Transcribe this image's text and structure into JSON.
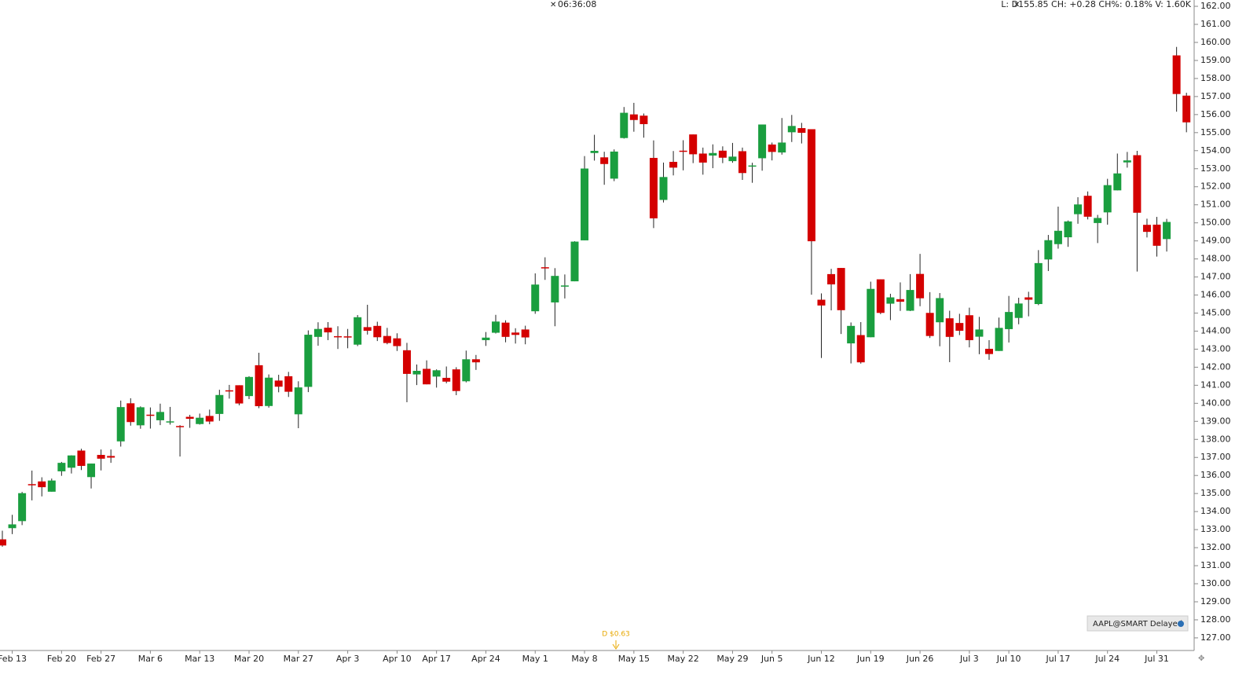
{
  "chart_data": {
    "type": "candlestick",
    "clock": "06:36:08",
    "quote": "L: D155.85 CH: +0.28 CH%: 0.18% V: 1.60K",
    "symbol_label": "AAPL@SMART Delayed",
    "annotations": [
      {
        "text": "D $0.63"
      }
    ],
    "up_color": "#1a9e3f",
    "down_color": "#d40000",
    "categories": [
      null,
      "Feb 13",
      null,
      null,
      null,
      null,
      "Feb 20",
      null,
      null,
      null,
      "Feb 27",
      null,
      null,
      null,
      null,
      "Mar 6",
      null,
      null,
      null,
      null,
      "Mar 13",
      null,
      null,
      null,
      null,
      "Mar 20",
      null,
      null,
      null,
      null,
      "Mar 27",
      null,
      null,
      null,
      null,
      "Apr 3",
      null,
      null,
      null,
      null,
      "Apr 10",
      null,
      null,
      null,
      "Apr 17",
      null,
      null,
      null,
      null,
      "Apr 24",
      null,
      null,
      null,
      null,
      "May 1",
      null,
      null,
      null,
      null,
      "May 8",
      null,
      null,
      null,
      null,
      "May 15",
      null,
      null,
      null,
      null,
      "May 22",
      null,
      null,
      null,
      null,
      "May 29",
      null,
      null,
      null,
      "Jun 5",
      null,
      null,
      null,
      null,
      "Jun 12",
      null,
      null,
      null,
      null,
      "Jun 19",
      null,
      null,
      null,
      null,
      "Jun 26",
      null,
      null,
      null,
      null,
      "Jul 3",
      null,
      null,
      null,
      "Jul 10",
      null,
      null,
      null,
      null,
      "Jul 17",
      null,
      null,
      null,
      null,
      "Jul 24",
      null,
      null,
      null,
      null,
      "Jul 31",
      null,
      null,
      null
    ],
    "open": [
      132.46,
      133.08,
      133.47,
      135.52,
      135.67,
      135.1,
      136.23,
      136.43,
      137.38,
      135.91,
      137.14,
      137.08,
      137.89,
      140.0,
      138.78,
      139.37,
      139.06,
      138.95,
      138.74,
      139.25,
      138.85,
      139.3,
      139.41,
      140.72,
      141.0,
      140.4,
      142.11,
      139.85,
      141.26,
      141.5,
      139.39,
      140.91,
      143.68,
      144.19,
      143.72,
      143.71,
      143.25,
      144.22,
      144.29,
      143.73,
      143.6,
      142.94,
      141.6,
      141.91,
      141.48,
      141.41,
      141.88,
      141.22,
      142.44,
      143.5,
      143.91,
      144.47,
      143.92,
      144.09,
      145.1,
      147.54,
      145.59,
      146.52,
      146.76,
      149.03,
      153.87,
      153.63,
      152.45,
      154.7,
      156.01,
      155.94,
      153.6,
      151.27,
      153.38,
      154.0,
      154.9,
      153.84,
      153.73,
      154.0,
      153.42,
      153.97,
      153.17,
      153.58,
      154.34,
      153.9,
      155.02,
      155.25,
      155.19,
      145.74,
      147.16,
      147.5,
      143.32,
      143.78,
      143.66,
      146.87,
      145.52,
      145.77,
      145.13,
      147.17,
      145.01,
      144.49,
      144.71,
      144.45,
      144.88,
      143.69,
      143.02,
      142.9,
      144.11,
      144.73,
      145.87,
      145.5,
      147.97,
      148.82,
      149.2,
      150.48,
      151.5,
      149.99,
      150.58,
      151.8,
      153.35,
      153.75,
      149.89,
      149.9,
      149.1,
      159.28,
      157.05
    ],
    "high": [
      132.94,
      133.82,
      135.09,
      136.27,
      135.9,
      135.83,
      136.75,
      137.12,
      137.48,
      136.66,
      137.44,
      137.44,
      140.15,
      140.28,
      139.83,
      139.77,
      139.98,
      139.8,
      138.79,
      139.36,
      139.43,
      139.65,
      140.75,
      141.02,
      141.0,
      141.5,
      142.8,
      141.6,
      141.58,
      141.74,
      141.22,
      144.04,
      144.49,
      144.5,
      144.27,
      144.12,
      144.89,
      145.46,
      144.52,
      144.18,
      143.88,
      143.35,
      142.15,
      142.38,
      141.88,
      142.04,
      142.0,
      142.92,
      142.68,
      143.95,
      144.9,
      144.6,
      144.16,
      144.3,
      147.2,
      148.09,
      147.49,
      147.14,
      148.98,
      153.7,
      154.88,
      153.94,
      154.07,
      156.42,
      156.65,
      156.06,
      154.57,
      153.34,
      153.98,
      154.58,
      154.9,
      154.17,
      154.35,
      154.24,
      154.43,
      154.17,
      153.33,
      155.45,
      154.45,
      155.81,
      155.98,
      155.54,
      155.19,
      146.09,
      147.45,
      147.5,
      144.48,
      144.5,
      146.74,
      146.87,
      146.07,
      146.7,
      147.16,
      148.28,
      146.16,
      146.11,
      145.13,
      144.96,
      145.3,
      144.79,
      143.5,
      144.75,
      145.95,
      145.85,
      146.18,
      148.49,
      149.33,
      150.9,
      150.13,
      151.42,
      151.74,
      150.44,
      152.44,
      153.84,
      153.93,
      153.99,
      150.23,
      150.33,
      150.22,
      159.75,
      157.21
    ],
    "low": [
      132.05,
      132.75,
      133.25,
      134.62,
      134.84,
      135.1,
      135.98,
      136.11,
      136.3,
      135.28,
      136.28,
      136.7,
      137.6,
      138.76,
      138.59,
      138.6,
      138.79,
      138.82,
      137.05,
      138.64,
      138.82,
      138.84,
      139.03,
      140.26,
      139.89,
      140.23,
      139.73,
      139.76,
      140.61,
      140.35,
      138.62,
      140.62,
      143.19,
      143.5,
      143.01,
      143.05,
      143.17,
      143.81,
      143.45,
      143.27,
      142.9,
      140.06,
      141.01,
      141.05,
      140.87,
      141.11,
      140.45,
      141.16,
      141.85,
      143.18,
      143.87,
      143.38,
      143.31,
      143.27,
      144.96,
      146.84,
      144.27,
      145.81,
      146.76,
      149.03,
      153.45,
      152.11,
      152.31,
      154.67,
      155.05,
      154.72,
      149.71,
      151.13,
      152.63,
      152.91,
      153.31,
      152.67,
      153.03,
      153.31,
      153.33,
      152.38,
      152.22,
      152.89,
      153.46,
      153.78,
      154.48,
      154.4,
      146.02,
      142.51,
      145.15,
      143.84,
      142.21,
      142.2,
      143.66,
      144.94,
      144.61,
      145.12,
      145.11,
      145.38,
      143.62,
      143.16,
      142.28,
      143.78,
      143.1,
      142.72,
      142.41,
      142.9,
      143.37,
      144.38,
      144.82,
      145.44,
      147.33,
      148.57,
      148.67,
      149.95,
      150.19,
      148.88,
      149.9,
      151.8,
      153.06,
      147.3,
      149.19,
      148.13,
      148.41,
      156.16,
      155.02
    ],
    "close": [
      132.12,
      133.29,
      135.02,
      135.51,
      135.35,
      135.72,
      136.7,
      137.11,
      136.53,
      136.66,
      136.93,
      136.99,
      139.79,
      138.96,
      139.78,
      139.34,
      139.52,
      139.0,
      138.68,
      139.14,
      139.2,
      138.99,
      140.46,
      140.69,
      139.99,
      141.46,
      139.84,
      141.42,
      140.92,
      140.64,
      140.88,
      143.8,
      144.12,
      143.93,
      143.66,
      143.7,
      144.77,
      144.02,
      143.66,
      143.34,
      143.17,
      141.63,
      141.8,
      141.05,
      141.83,
      141.2,
      140.68,
      142.44,
      142.27,
      143.64,
      144.53,
      143.68,
      143.79,
      143.65,
      146.58,
      147.51,
      147.06,
      146.53,
      148.96,
      153.01,
      153.99,
      153.26,
      153.95,
      156.1,
      155.7,
      155.47,
      150.25,
      152.54,
      153.06,
      153.99,
      153.8,
      153.34,
      153.87,
      153.61,
      153.67,
      152.76,
      153.18,
      155.45,
      153.93,
      154.45,
      155.37,
      154.99,
      148.98,
      145.42,
      146.59,
      145.16,
      144.29,
      142.27,
      146.34,
      145.01,
      145.87,
      145.63,
      146.28,
      145.82,
      143.73,
      145.83,
      143.68,
      144.02,
      143.5,
      144.09,
      142.73,
      144.18,
      145.06,
      145.53,
      145.74,
      147.77,
      149.04,
      149.56,
      150.08,
      151.02,
      150.34,
      150.27,
      152.09,
      152.74,
      153.46,
      150.56,
      149.5,
      148.73,
      150.05,
      157.14,
      155.57
    ],
    "ylim": [
      126.3,
      162.35
    ],
    "yticks": [
      {
        "value": 127,
        "label": "127.00"
      },
      {
        "value": 128,
        "label": "128.00"
      },
      {
        "value": 129,
        "label": "129.00"
      },
      {
        "value": 130,
        "label": "130.00"
      },
      {
        "value": 131,
        "label": "131.00"
      },
      {
        "value": 132,
        "label": "132.00"
      },
      {
        "value": 133,
        "label": "133.00"
      },
      {
        "value": 134,
        "label": "134.00"
      },
      {
        "value": 135,
        "label": "135.00"
      },
      {
        "value": 136,
        "label": "136.00"
      },
      {
        "value": 137,
        "label": "137.00"
      },
      {
        "value": 138,
        "label": "138.00"
      },
      {
        "value": 139,
        "label": "139.00"
      },
      {
        "value": 140,
        "label": "140.00"
      },
      {
        "value": 141,
        "label": "141.00"
      },
      {
        "value": 142,
        "label": "142.00"
      },
      {
        "value": 143,
        "label": "143.00"
      },
      {
        "value": 144,
        "label": "144.00"
      },
      {
        "value": 145,
        "label": "145.00"
      },
      {
        "value": 146,
        "label": "146.00"
      },
      {
        "value": 147,
        "label": "147.00"
      },
      {
        "value": 148,
        "label": "148.00"
      },
      {
        "value": 149,
        "label": "149.00"
      },
      {
        "value": 150,
        "label": "150.00"
      },
      {
        "value": 151,
        "label": "151.00"
      },
      {
        "value": 152,
        "label": "152.00"
      },
      {
        "value": 153,
        "label": "153.00"
      },
      {
        "value": 154,
        "label": "154.00"
      },
      {
        "value": 155,
        "label": "155.00"
      },
      {
        "value": 156,
        "label": "156.00"
      },
      {
        "value": 157,
        "label": "157.00"
      },
      {
        "value": 158,
        "label": "158.00"
      },
      {
        "value": 159,
        "label": "159.00"
      },
      {
        "value": 160,
        "label": "160.00"
      },
      {
        "value": 161,
        "label": "161.00"
      },
      {
        "value": 162,
        "label": "162.00"
      }
    ],
    "grid": false
  }
}
